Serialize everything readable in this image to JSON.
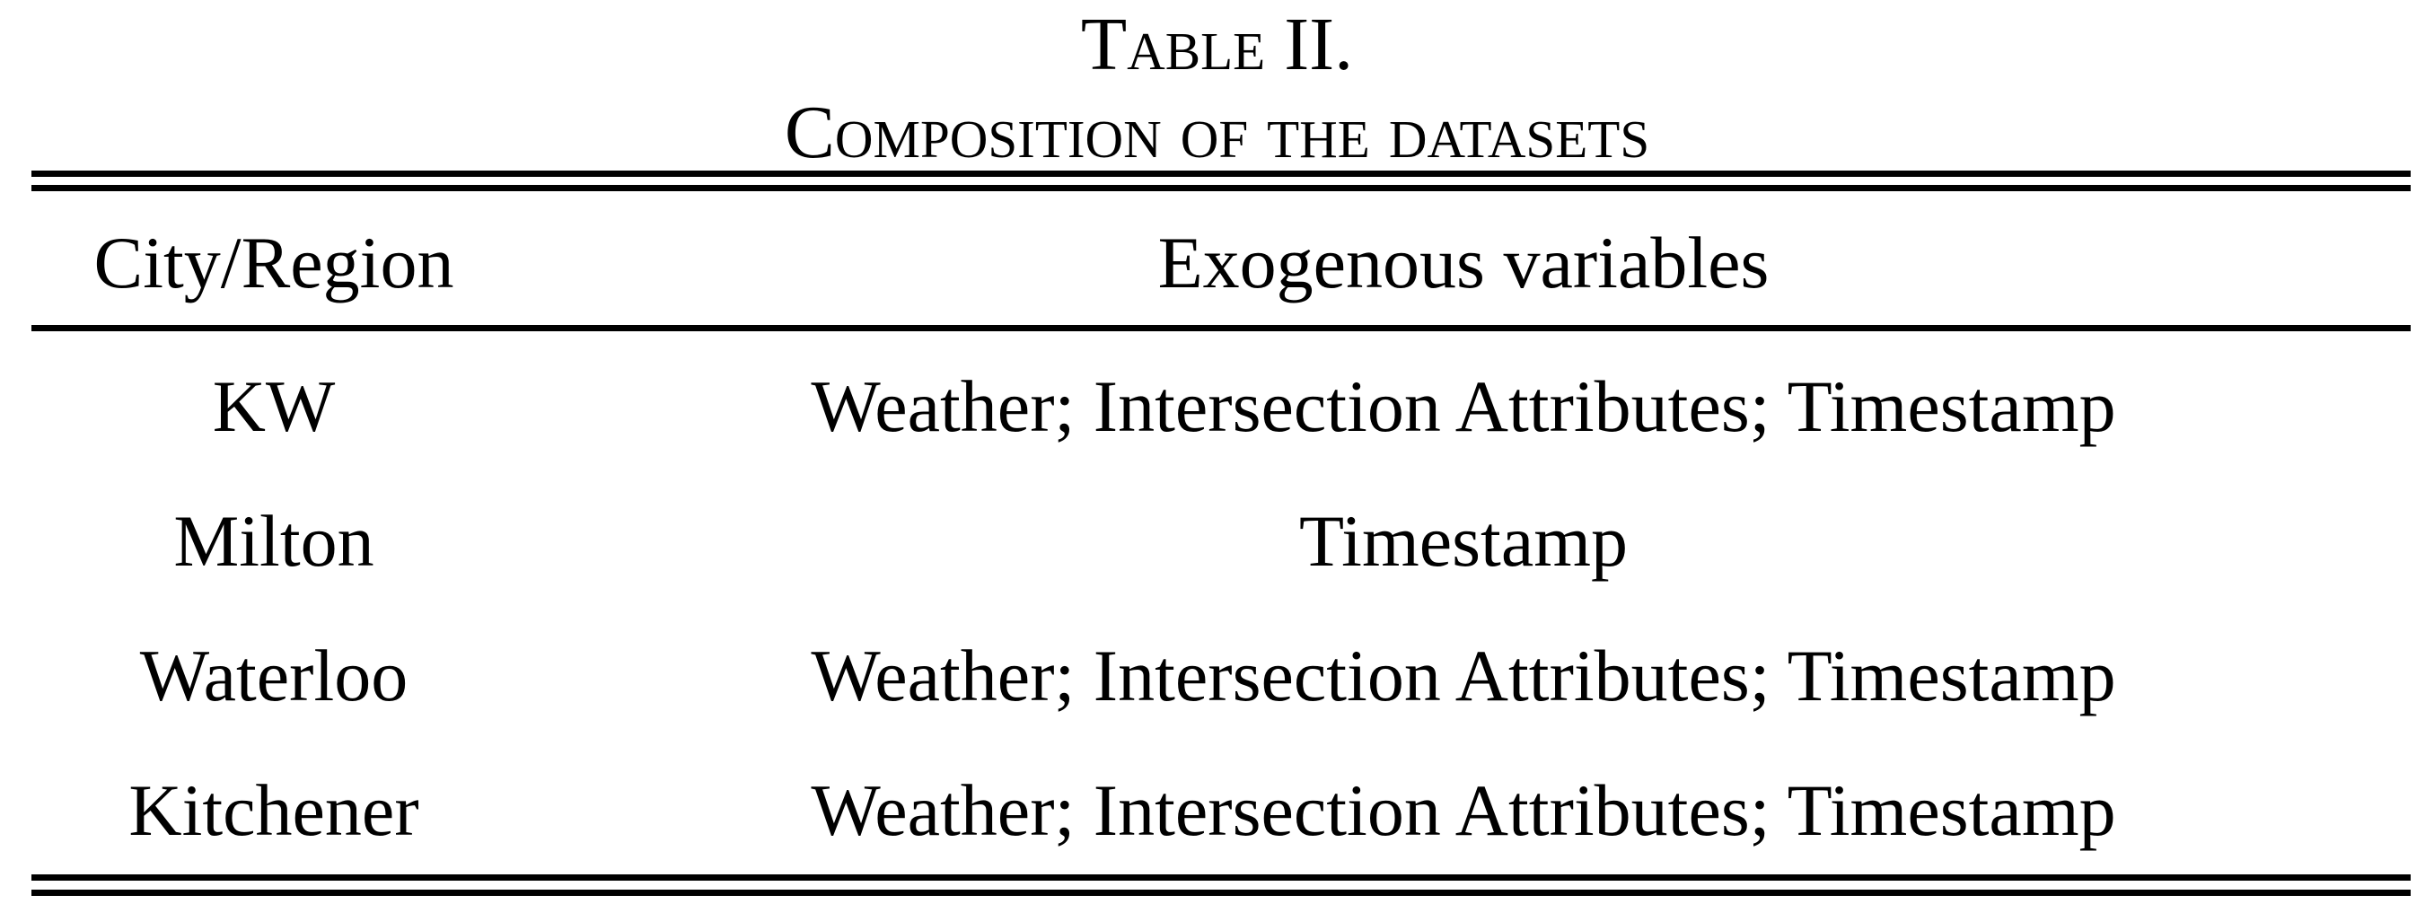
{
  "caption": {
    "label": "Table II.",
    "title": "Composition of the datasets"
  },
  "table": {
    "headers": [
      "City/Region",
      "Exogenous variables"
    ],
    "rows": [
      [
        "KW",
        "Weather; Intersection Attributes; Timestamp"
      ],
      [
        "Milton",
        "Timestamp"
      ],
      [
        "Waterloo",
        "Weather; Intersection Attributes; Timestamp"
      ],
      [
        "Kitchener",
        "Weather; Intersection Attributes; Timestamp"
      ]
    ]
  }
}
